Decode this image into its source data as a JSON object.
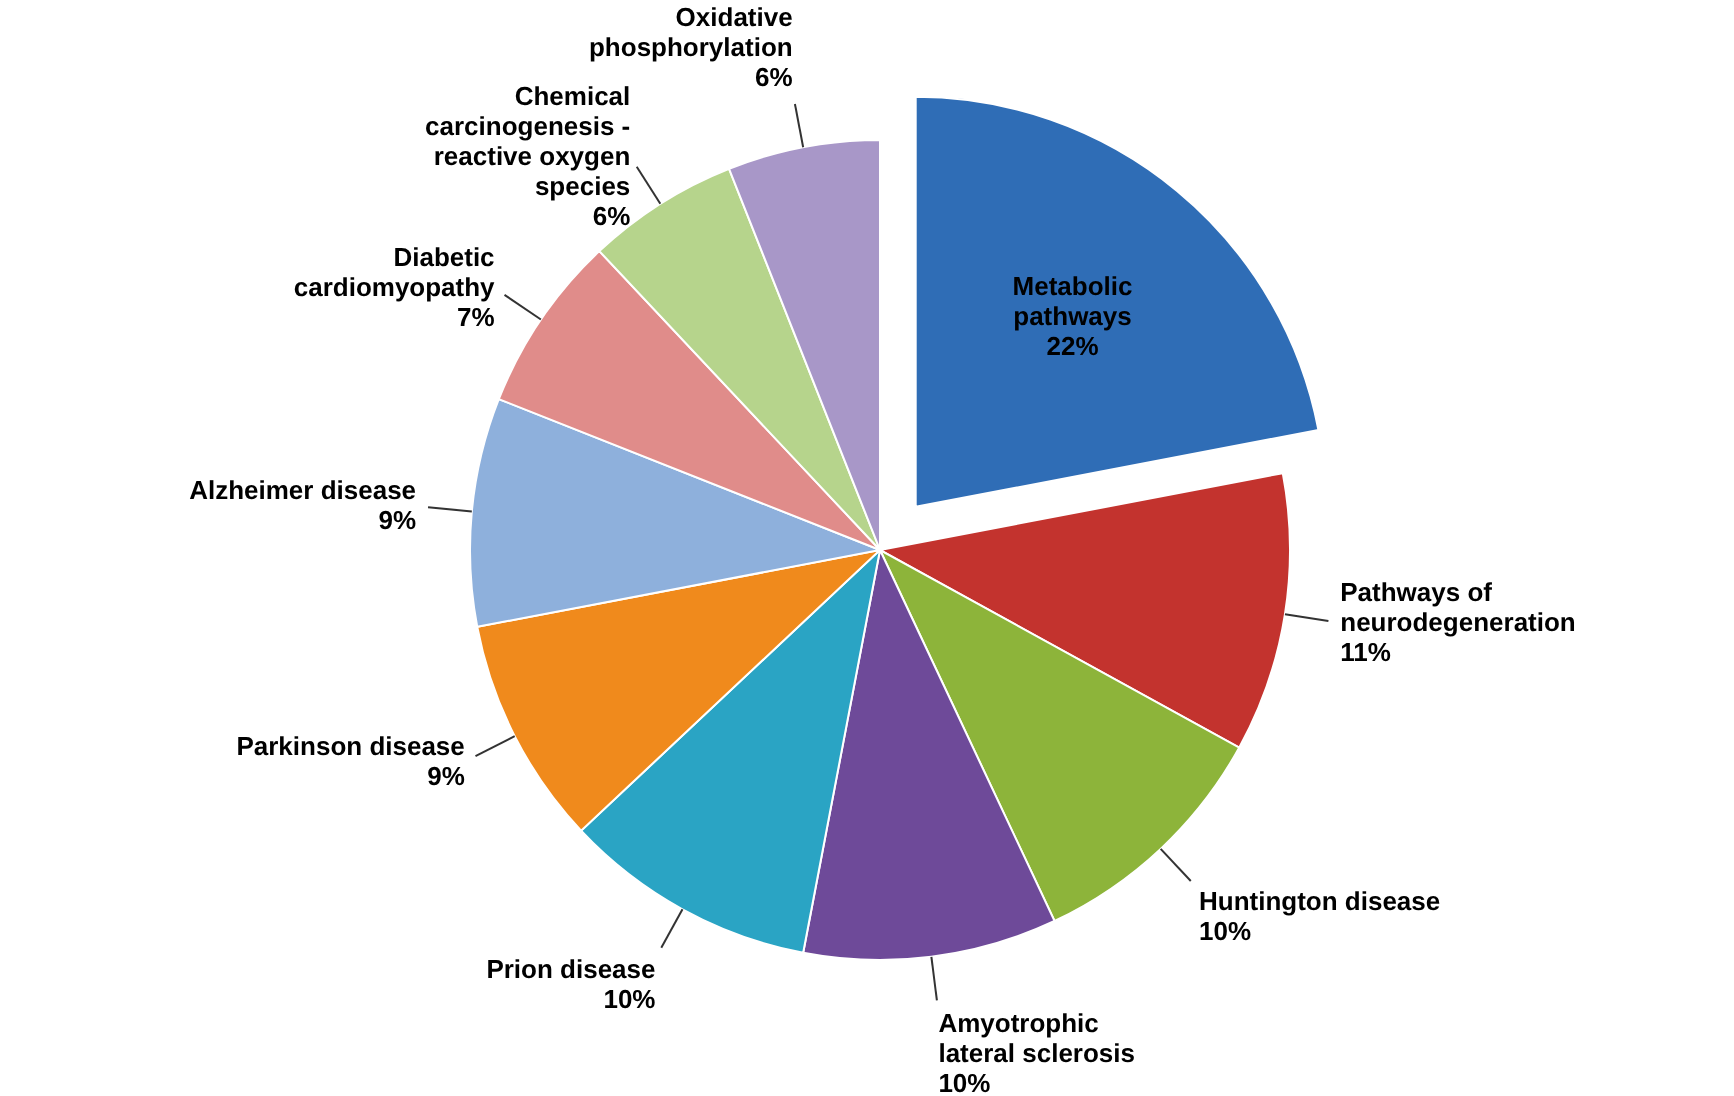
{
  "chart_data": {
    "type": "pie",
    "categories": [
      "Metabolic pathways",
      "Pathways of neurodegeneration",
      "Huntington disease",
      "Amyotrophic lateral sclerosis",
      "Prion disease",
      "Parkinson disease",
      "Alzheimer disease",
      "Diabetic cardiomyopathy",
      "Chemical carcinogenesis - reactive oxygen species",
      "Oxidative phosphorylation"
    ],
    "values": [
      22,
      11,
      10,
      10,
      10,
      9,
      9,
      7,
      6,
      6
    ],
    "colors": [
      "#2f6db6",
      "#c3332e",
      "#8db43a",
      "#6e4a99",
      "#2aa4c4",
      "#f08a1c",
      "#8eb0dc",
      "#e08c8a",
      "#b6d48c",
      "#a897c8"
    ],
    "data_labels": true,
    "value_labels": [
      "22%",
      "11%",
      "10%",
      "10%",
      "10%",
      "9%",
      "9%",
      "7%",
      "6%",
      "6%"
    ]
  }
}
